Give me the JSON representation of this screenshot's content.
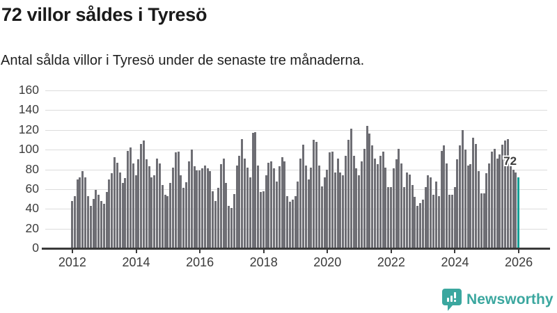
{
  "header": {
    "title": "72 villor såldes i Tyresö",
    "subtitle": "Antal sålda villor i Tyresö under de senaste tre månaderna."
  },
  "chart_data": {
    "type": "bar",
    "title": "72 villor såldes i Tyresö",
    "subtitle": "Antal sålda villor i Tyresö under de senaste tre månaderna.",
    "unit": "sålda villor per månad (rullande tre månader)",
    "frequency": "monthly",
    "start_year": 2012,
    "start_month": 1,
    "values": [
      48,
      53,
      70,
      72,
      78,
      72,
      53,
      43,
      50,
      59,
      54,
      48,
      45,
      57,
      70,
      76,
      92,
      87,
      77,
      66,
      71,
      99,
      102,
      86,
      74,
      90,
      106,
      109,
      90,
      83,
      72,
      74,
      91,
      86,
      64,
      54,
      53,
      66,
      82,
      97,
      98,
      74,
      61,
      67,
      88,
      100,
      83,
      79,
      79,
      81,
      84,
      81,
      78,
      58,
      48,
      61,
      85,
      91,
      66,
      43,
      41,
      55,
      84,
      94,
      111,
      91,
      82,
      72,
      117,
      118,
      84,
      57,
      58,
      74,
      87,
      88,
      81,
      68,
      83,
      92,
      88,
      53,
      47,
      49,
      53,
      68,
      91,
      105,
      84,
      70,
      82,
      110,
      108,
      84,
      63,
      72,
      80,
      97,
      98,
      77,
      91,
      77,
      74,
      94,
      110,
      121,
      94,
      81,
      74,
      88,
      101,
      124,
      116,
      104,
      91,
      85,
      94,
      98,
      82,
      62,
      62,
      81,
      90,
      101,
      86,
      62,
      77,
      75,
      64,
      52,
      43,
      46,
      49,
      62,
      74,
      72,
      54,
      68,
      53,
      99,
      104,
      86,
      54,
      54,
      62,
      90,
      104,
      120,
      100,
      84,
      85,
      112,
      106,
      78,
      56,
      56,
      76,
      86,
      98,
      101,
      91,
      95,
      105,
      109,
      111,
      90,
      80,
      77,
      72
    ],
    "highlight_last": true,
    "highlight_value": 72,
    "highlight_label": "72",
    "bar_color": "#6e6e74",
    "highlight_color": "#14a096",
    "y_ticks": [
      0,
      20,
      40,
      60,
      80,
      100,
      120,
      140,
      160
    ],
    "x_ticks": [
      2012,
      2014,
      2016,
      2018,
      2020,
      2022,
      2024,
      2026
    ],
    "ylim": [
      0,
      160
    ],
    "grid": true,
    "legend": "none"
  },
  "footer": {
    "brand": "Newsworthy",
    "brand_color": "#3ba79f"
  }
}
